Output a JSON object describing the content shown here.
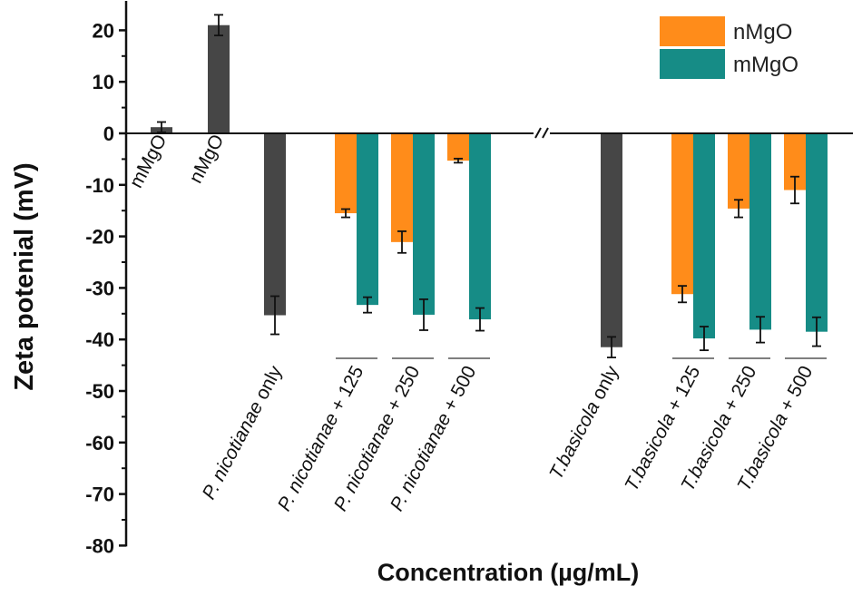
{
  "chart_data": {
    "type": "bar",
    "title": "",
    "xlabel": "Concentration (µg/mL)",
    "ylabel": "Zeta potenial (mV)",
    "ylim": [
      -80,
      25
    ],
    "yticks": [
      20,
      10,
      0,
      -10,
      -20,
      -30,
      -40,
      -50,
      -60,
      -70,
      -80
    ],
    "ytick_labels": [
      "20",
      "10",
      "0",
      "-10",
      "-20",
      "-30",
      "-40",
      "-50",
      "-60",
      "-70",
      "-80"
    ],
    "axis_break": true,
    "colors": {
      "nMgO": "#ff8c1a",
      "mMgO": "#168c86",
      "control": "#464646"
    },
    "legend": [
      {
        "name": "nMgO",
        "color": "#ff8c1a"
      },
      {
        "name": "mMgO",
        "color": "#168c86"
      }
    ],
    "legend_position": "top-right",
    "groups": [
      {
        "label": "mMgO",
        "label_parts": [
          {
            "t": "mMgO",
            "i": false
          }
        ],
        "label_pos": "top",
        "bars": [
          {
            "series": "control",
            "value": 1.2,
            "error": 1.0
          }
        ]
      },
      {
        "label": "nMgO",
        "label_parts": [
          {
            "t": "nMgO",
            "i": false
          }
        ],
        "label_pos": "top",
        "bars": [
          {
            "series": "control",
            "value": 21.0,
            "error": 2.0
          }
        ]
      },
      {
        "label": "P. nicotianae  only",
        "label_parts": [
          {
            "t": "P. nicotianae",
            "i": true
          },
          {
            "t": "  only",
            "i": false
          }
        ],
        "label_pos": "bottom",
        "bars": [
          {
            "series": "control",
            "value": -35.3,
            "error": 3.7
          }
        ]
      },
      {
        "label": "P. nicotianae + 125",
        "label_parts": [
          {
            "t": "P. nicotianae",
            "i": true
          },
          {
            "t": " + 125",
            "i": false
          }
        ],
        "label_pos": "bottom",
        "bars": [
          {
            "series": "nMgO",
            "value": -15.5,
            "error": 0.8
          },
          {
            "series": "mMgO",
            "value": -33.3,
            "error": 1.5
          }
        ]
      },
      {
        "label": "P. nicotianae + 250",
        "label_parts": [
          {
            "t": "P. nicotianae",
            "i": true
          },
          {
            "t": " + 250",
            "i": false
          }
        ],
        "label_pos": "bottom",
        "bars": [
          {
            "series": "nMgO",
            "value": -21.1,
            "error": 2.1
          },
          {
            "series": "mMgO",
            "value": -35.2,
            "error": 3.0
          }
        ]
      },
      {
        "label": "P. nicotianae + 500",
        "label_parts": [
          {
            "t": "P. nicotianae",
            "i": true
          },
          {
            "t": " + 500",
            "i": false
          }
        ],
        "label_pos": "bottom",
        "bars": [
          {
            "series": "nMgO",
            "value": -5.3,
            "error": 0.4
          },
          {
            "series": "mMgO",
            "value": -36.1,
            "error": 2.2
          }
        ]
      },
      {
        "label": "T.basicola  only",
        "label_parts": [
          {
            "t": "T.basicola",
            "i": true
          },
          {
            "t": "  only",
            "i": false
          }
        ],
        "label_pos": "bottom",
        "bars": [
          {
            "series": "control",
            "value": -41.5,
            "error": 2.0
          }
        ]
      },
      {
        "label": "T.basicola + 125",
        "label_parts": [
          {
            "t": "T.basicola",
            "i": true
          },
          {
            "t": " + 125",
            "i": false
          }
        ],
        "label_pos": "bottom",
        "bars": [
          {
            "series": "nMgO",
            "value": -31.2,
            "error": 1.6
          },
          {
            "series": "mMgO",
            "value": -39.8,
            "error": 2.3
          }
        ]
      },
      {
        "label": "T.basicola + 250",
        "label_parts": [
          {
            "t": "T.basicola",
            "i": true
          },
          {
            "t": " + 250",
            "i": false
          }
        ],
        "label_pos": "bottom",
        "bars": [
          {
            "series": "nMgO",
            "value": -14.6,
            "error": 1.7
          },
          {
            "series": "mMgO",
            "value": -38.1,
            "error": 2.5
          }
        ]
      },
      {
        "label": "T.basicola + 500",
        "label_parts": [
          {
            "t": "T.basicola",
            "i": true
          },
          {
            "t": " + 500",
            "i": false
          }
        ],
        "label_pos": "bottom",
        "bars": [
          {
            "series": "nMgO",
            "value": -11.0,
            "error": 2.6
          },
          {
            "series": "mMgO",
            "value": -38.5,
            "error": 2.8
          }
        ]
      }
    ]
  }
}
